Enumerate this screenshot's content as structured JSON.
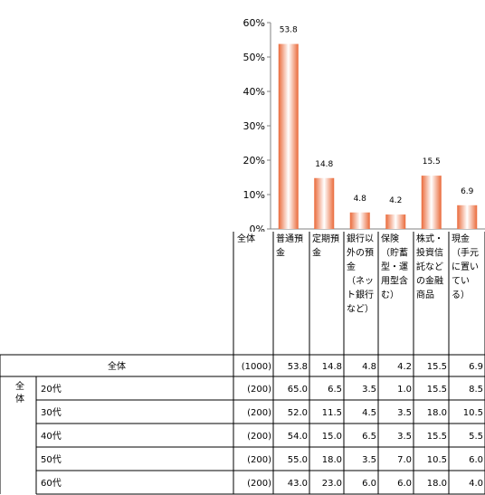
{
  "chart_data": {
    "type": "bar",
    "categories": [
      "普通預金",
      "定期預金",
      "銀行以外の預金（ネット銀行など）",
      "保険（貯蓄型・運用型含む）",
      "株式・投資信託などの金融商品",
      "現金（手元に置いている）"
    ],
    "values": [
      53.8,
      14.8,
      4.8,
      4.2,
      15.5,
      6.9
    ],
    "data_labels": [
      "53.8",
      "14.8",
      "4.8",
      "4.2",
      "15.5",
      "6.9"
    ],
    "y_ticks": [
      "0%",
      "10%",
      "20%",
      "30%",
      "40%",
      "50%",
      "60%"
    ],
    "ylim": [
      0,
      60
    ],
    "colors": {
      "bar_edge": "#ea6a3a",
      "bar_center": "#ffffff"
    }
  },
  "table": {
    "header_first": "全体",
    "header_lines": [
      [
        "普通預",
        "金"
      ],
      [
        "定期預",
        "金"
      ],
      [
        "銀行以",
        "外の預",
        "金",
        "（ネッ",
        "ト銀行",
        "など）"
      ],
      [
        "保険",
        "（貯蓄",
        "型・運",
        "用型含",
        "む）"
      ],
      [
        "株式・",
        "投資信",
        "託など",
        "の金融",
        "商品"
      ],
      [
        "現金",
        "（手元",
        "に置い",
        "てい",
        "る）"
      ]
    ],
    "total_row": {
      "label": "全体",
      "n": "(1000)",
      "values": [
        "53.8",
        "14.8",
        "4.8",
        "4.2",
        "15.5",
        "6.9"
      ]
    },
    "group_label": "全体",
    "rows": [
      {
        "label": "20代",
        "n": "(200)",
        "values": [
          "65.0",
          "6.5",
          "3.5",
          "1.0",
          "15.5",
          "8.5"
        ]
      },
      {
        "label": "30代",
        "n": "(200)",
        "values": [
          "52.0",
          "11.5",
          "4.5",
          "3.5",
          "18.0",
          "10.5"
        ]
      },
      {
        "label": "40代",
        "n": "(200)",
        "values": [
          "54.0",
          "15.0",
          "6.5",
          "3.5",
          "15.5",
          "5.5"
        ]
      },
      {
        "label": "50代",
        "n": "(200)",
        "values": [
          "55.0",
          "18.0",
          "3.5",
          "7.0",
          "10.5",
          "6.0"
        ]
      },
      {
        "label": "60代",
        "n": "(200)",
        "values": [
          "43.0",
          "23.0",
          "6.0",
          "6.0",
          "18.0",
          "4.0"
        ]
      }
    ]
  }
}
